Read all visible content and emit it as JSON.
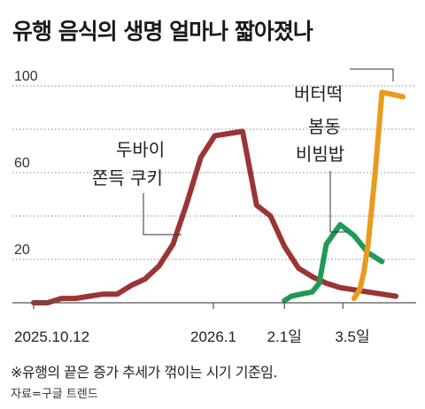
{
  "title": "유행 음식의 생명 얼마나 짧아졌나",
  "note": "※유행의 끝은 증가 추세가 꺾이는 시기 기준임.",
  "source": "자료=구글 트렌드",
  "chart_data": {
    "type": "line",
    "yticks": [
      "100",
      "60",
      "20"
    ],
    "ytick_values": [
      100,
      60,
      20
    ],
    "ylim": [
      0,
      100
    ],
    "xticks": [
      "2025.10.12",
      "2026.1",
      "2.1일",
      "3.5일"
    ],
    "grid": "dashed horizontal",
    "series": [
      {
        "name": "두바이 쫀득 쿠키",
        "label_lines": [
          "두바이",
          "쫀득 쿠키"
        ],
        "color": "#9b3535",
        "values": [
          0,
          0,
          2,
          2,
          3,
          4,
          4,
          8,
          11,
          17,
          27,
          46,
          67,
          77,
          78,
          79,
          45,
          40,
          26,
          16,
          12,
          9,
          7,
          6,
          5,
          4,
          3
        ],
        "x": [
          0,
          1,
          2,
          3,
          4,
          5,
          6,
          7,
          8,
          9,
          10,
          11,
          12,
          13,
          14,
          15,
          16,
          17,
          18,
          19,
          20,
          21,
          22,
          23,
          24,
          25,
          26
        ]
      },
      {
        "name": "봄동 비빔밥",
        "label_lines": [
          "봄동",
          "비빔밥"
        ],
        "color": "#1f9a55",
        "values": [
          1,
          3,
          4,
          5,
          9,
          27,
          36,
          31,
          23,
          19
        ],
        "x": [
          18,
          18.5,
          19.2,
          20,
          20.5,
          21,
          22,
          23,
          24,
          25
        ]
      },
      {
        "name": "버터떡",
        "label_lines": [
          "버터떡"
        ],
        "color": "#e89b1e",
        "values": [
          2,
          6,
          14,
          27,
          59,
          97,
          96,
          95
        ],
        "x": [
          23,
          23.4,
          23.7,
          24,
          24.5,
          25,
          25.8,
          26.5
        ]
      }
    ]
  }
}
